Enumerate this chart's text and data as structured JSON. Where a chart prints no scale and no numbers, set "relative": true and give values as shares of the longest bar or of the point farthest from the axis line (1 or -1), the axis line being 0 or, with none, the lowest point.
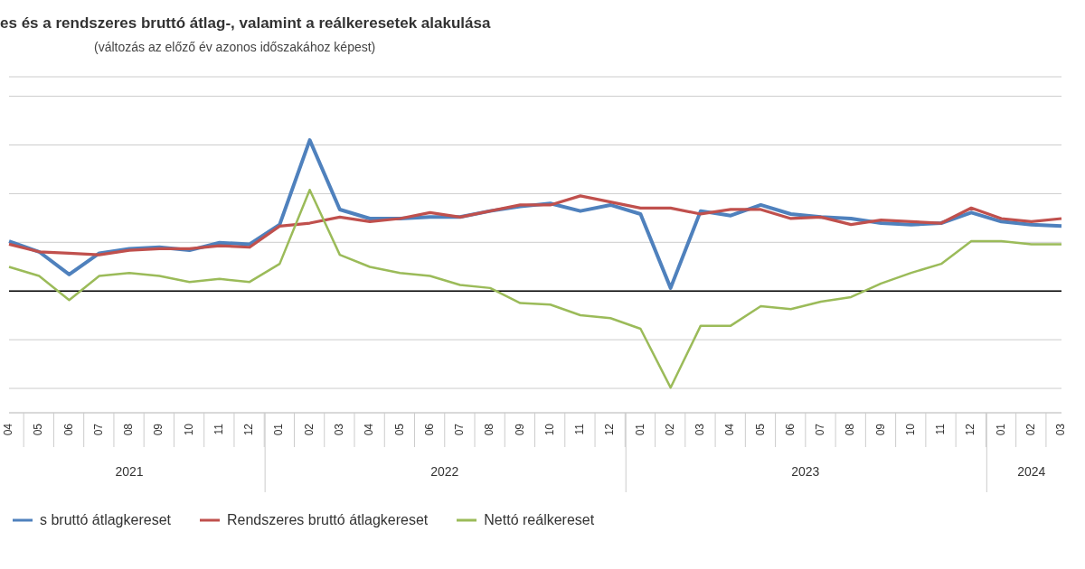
{
  "chart_data": {
    "type": "line",
    "relative": true,
    "title": "es és a rendszeres bruttó átlag-, valamint a reálkeresetek alakulása",
    "subtitle": "(változás az előző év azonos időszakához képest)",
    "categories": [
      "04",
      "05",
      "06",
      "07",
      "08",
      "09",
      "10",
      "11",
      "12",
      "01",
      "02",
      "03",
      "04",
      "05",
      "06",
      "07",
      "08",
      "09",
      "10",
      "11",
      "12",
      "01",
      "02",
      "03",
      "04",
      "05",
      "06",
      "07",
      "08",
      "09",
      "10",
      "11",
      "12",
      "01",
      "02",
      "03"
    ],
    "annotations": [
      "2021",
      "2022",
      "2023",
      "2024"
    ],
    "series": [
      {
        "name": "s bruttó átlagkereset",
        "color": "#4f81bd",
        "values": [
          0.33,
          0.26,
          0.11,
          0.25,
          0.28,
          0.29,
          0.27,
          0.32,
          0.31,
          0.44,
          1,
          0.54,
          0.48,
          0.48,
          0.49,
          0.49,
          0.53,
          0.56,
          0.58,
          0.53,
          0.57,
          0.51,
          0.02,
          0.53,
          0.5,
          0.57,
          0.51,
          0.49,
          0.48,
          0.45,
          0.44,
          0.45,
          0.52,
          0.46,
          0.44,
          0.43
        ]
      },
      {
        "name": "Rendszeres bruttó átlagkereset",
        "color": "#c0504d",
        "values": [
          0.31,
          0.26,
          0.25,
          0.24,
          0.27,
          0.28,
          0.28,
          0.3,
          0.29,
          0.43,
          0.45,
          0.49,
          0.46,
          0.48,
          0.52,
          0.49,
          0.53,
          0.57,
          0.57,
          0.63,
          0.59,
          0.55,
          0.55,
          0.51,
          0.54,
          0.54,
          0.48,
          0.49,
          0.44,
          0.47,
          0.46,
          0.45,
          0.55,
          0.48,
          0.46,
          0.48
        ]
      },
      {
        "name": "Nettó reálkereset",
        "color": "#9bbb59",
        "values": [
          0.16,
          0.1,
          -0.06,
          0.1,
          0.12,
          0.1,
          0.06,
          0.08,
          0.06,
          0.18,
          0.67,
          0.24,
          0.16,
          0.12,
          0.1,
          0.04,
          0.02,
          -0.08,
          -0.09,
          -0.16,
          -0.18,
          -0.25,
          -0.64,
          -0.23,
          -0.23,
          -0.1,
          -0.12,
          -0.07,
          -0.04,
          0.05,
          0.12,
          0.18,
          0.33,
          0.33,
          0.31,
          0.31
        ]
      }
    ],
    "grid": "y",
    "legend": "bottom",
    "marker": "none",
    "line_style": "solid"
  }
}
